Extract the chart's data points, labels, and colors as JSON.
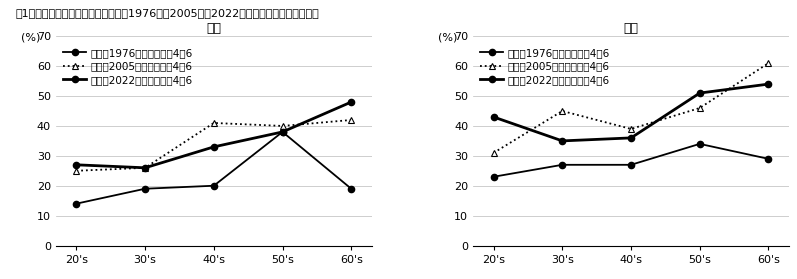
{
  "title": "図1　素朴道徳感情スケールの変化（1976年、2005年、2022年調査別、性別、年齢別）",
  "categories": [
    "20's",
    "30's",
    "40's",
    "50's",
    "60's"
  ],
  "male": {
    "subtitle": "男性",
    "series_1976": [
      14,
      19,
      20,
      38,
      19
    ],
    "series_2005": [
      25,
      26,
      41,
      40,
      42
    ],
    "series_2022": [
      27,
      26,
      33,
      38,
      48
    ],
    "legend_1976": "男性　1976年　スケール4〜6",
    "legend_2005": "男性　2005年　スケール4〜6",
    "legend_2022": "男性　2022年　スケール4〜6"
  },
  "female": {
    "subtitle": "女性",
    "series_1976": [
      23,
      27,
      27,
      34,
      29
    ],
    "series_2005": [
      31,
      45,
      39,
      46,
      61
    ],
    "series_2022": [
      43,
      35,
      36,
      51,
      54
    ],
    "legend_1976": "女性　1976年　スケール4〜6",
    "legend_2005": "女性　2005年　スケール4〜6",
    "legend_2022": "女性　2022年　スケール4〜6"
  },
  "ylim": [
    0,
    70
  ],
  "yticks": [
    0,
    10,
    20,
    30,
    40,
    50,
    60,
    70
  ],
  "ylabel": "(%)",
  "bg_color": "#ffffff"
}
